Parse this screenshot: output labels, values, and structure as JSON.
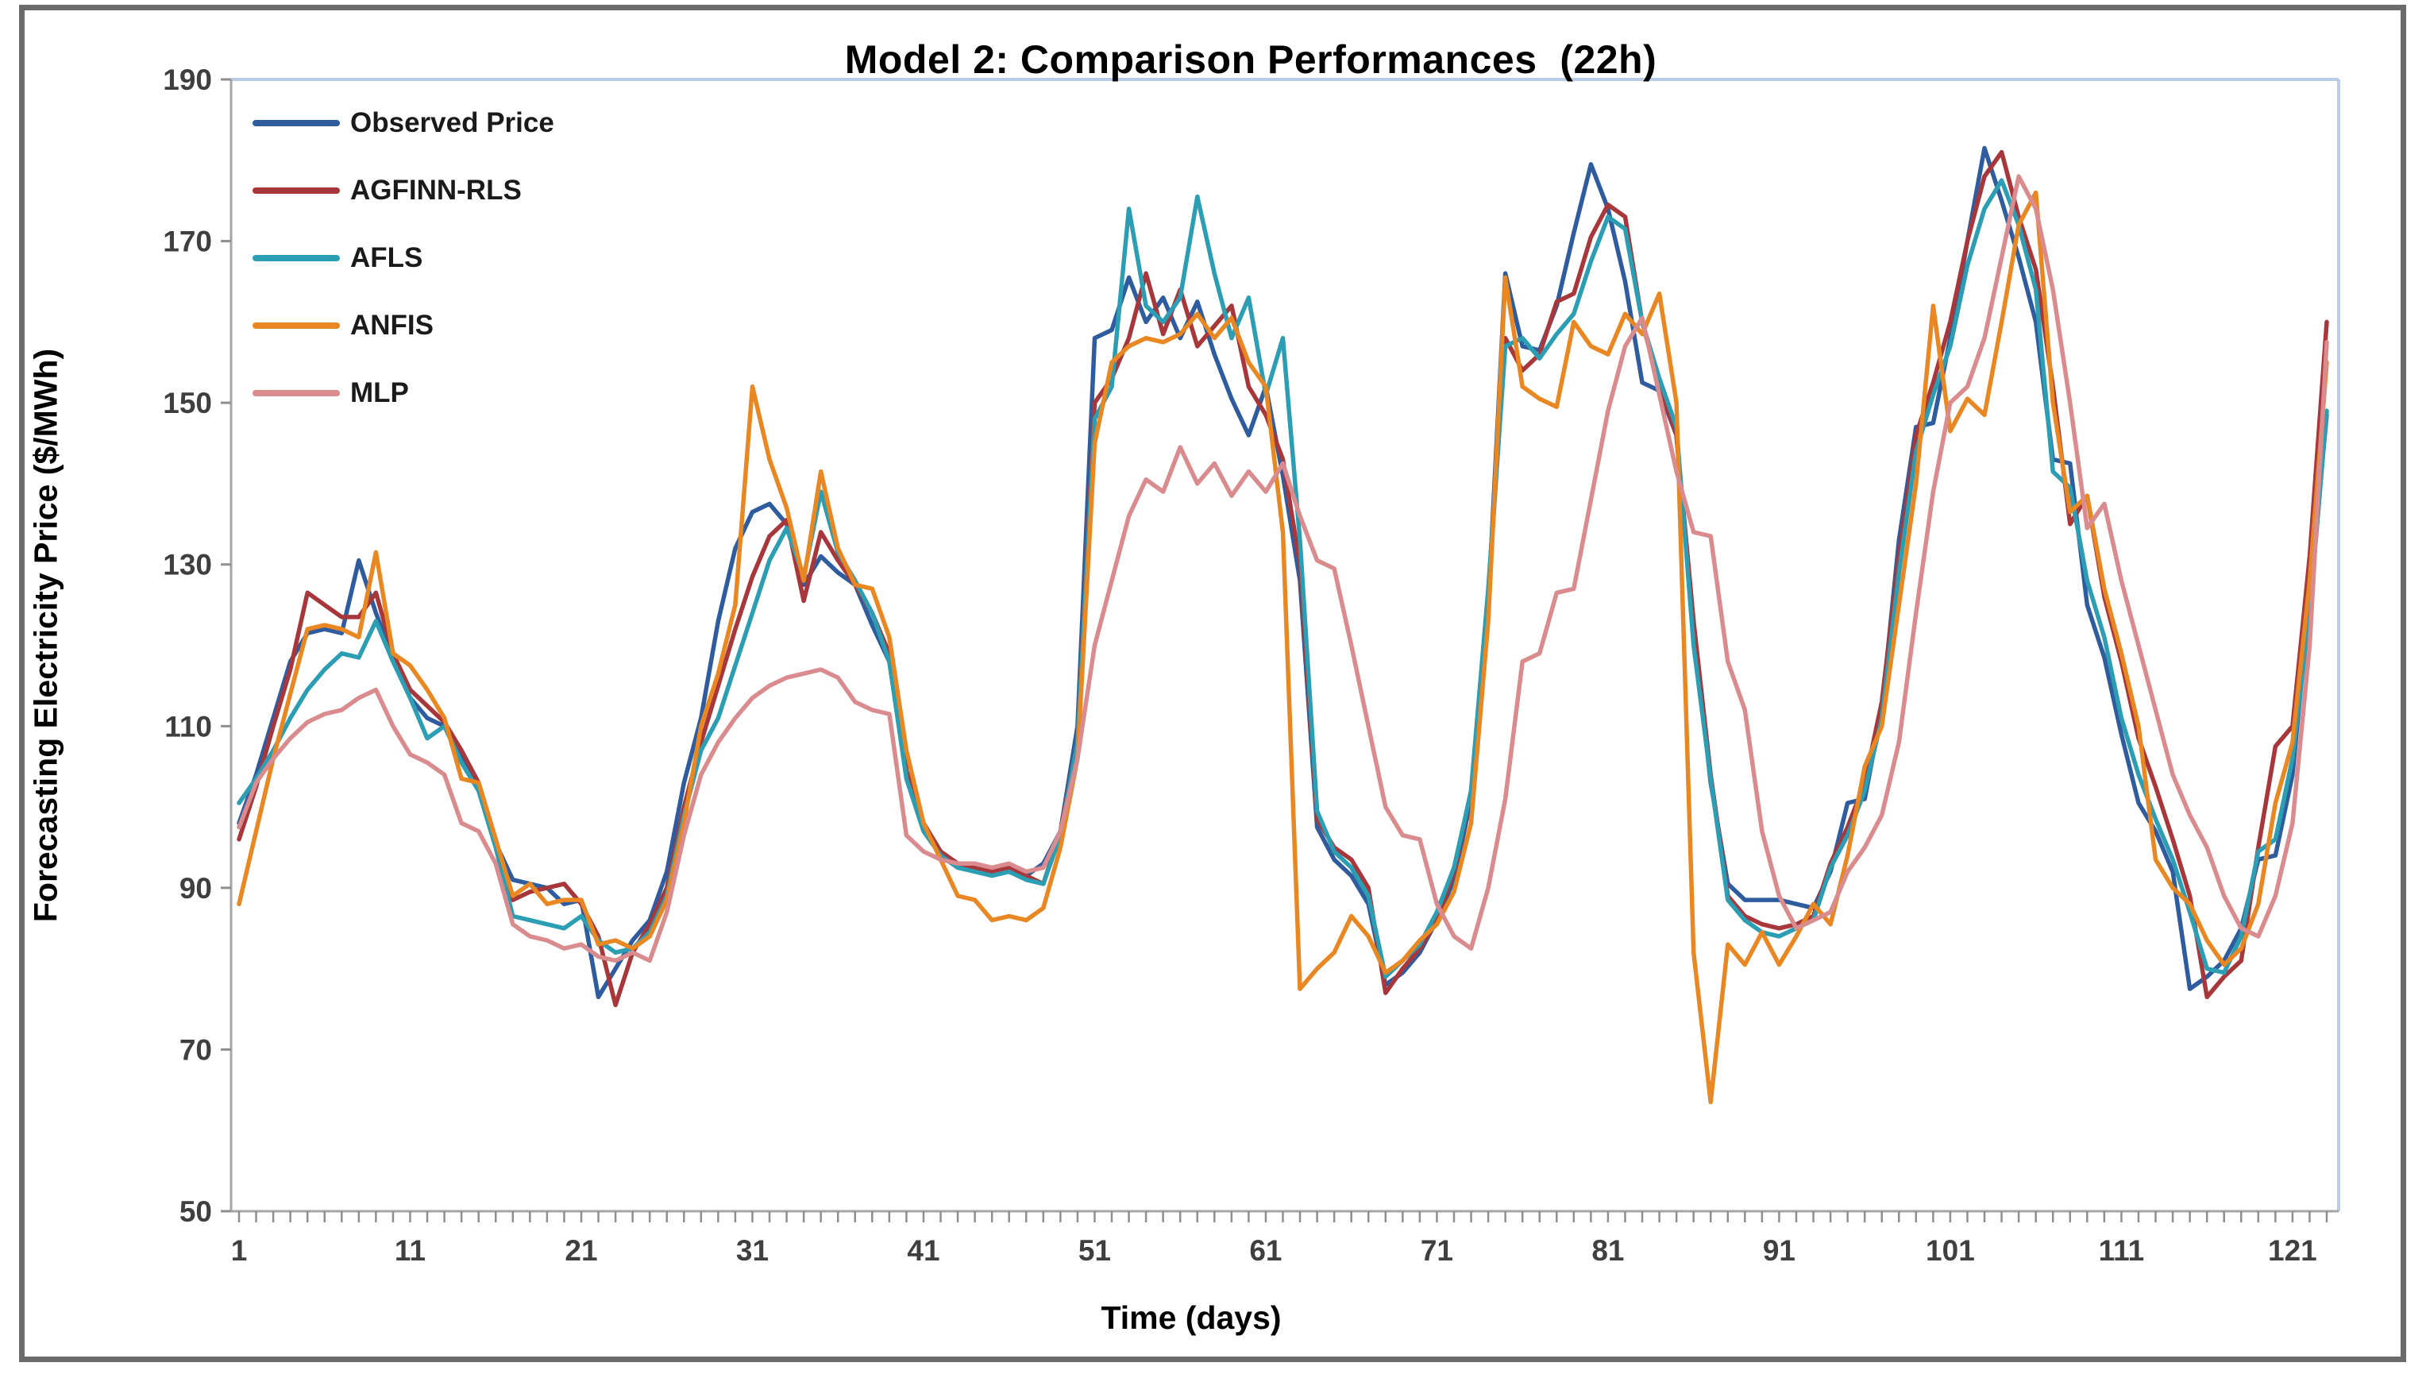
{
  "chart_data": {
    "type": "line",
    "title": "Model 2: Comparison Performances  (22h)",
    "xlabel": "Time (days)",
    "ylabel": "Forecasting Electricity Price ($/MWh)",
    "x_ticks": [
      1,
      11,
      21,
      31,
      41,
      51,
      61,
      71,
      81,
      91,
      101,
      111,
      121
    ],
    "y_ticks": [
      50,
      70,
      90,
      110,
      130,
      150,
      170,
      190
    ],
    "ylim": [
      50,
      190
    ],
    "n_days": 123,
    "grid": "off",
    "legend_position": "top-left-inside",
    "series": [
      {
        "name": "Observed Price",
        "color": "#2E5C9E",
        "values": [
          98,
          104,
          111,
          118,
          121.5,
          122,
          121.5,
          130.5,
          124,
          118.5,
          113.5,
          111,
          110,
          106,
          102.5,
          95.5,
          91,
          90.5,
          90,
          88,
          88.5,
          76.5,
          80,
          83.5,
          86,
          92,
          103,
          111,
          123,
          132,
          136.5,
          137.5,
          135,
          127.5,
          131,
          129,
          127.5,
          122.5,
          118,
          104,
          97.5,
          94,
          92.5,
          92.5,
          92,
          92.5,
          91.5,
          93,
          97,
          110,
          158,
          159,
          165.5,
          160,
          163,
          158,
          162.5,
          156,
          150.5,
          146,
          152,
          141,
          128,
          97.5,
          93.5,
          91.5,
          88,
          78,
          79.5,
          82,
          86,
          91,
          101,
          125,
          166,
          157,
          156.5,
          162,
          171,
          179.5,
          174,
          165,
          152.5,
          151.5,
          146,
          122,
          103,
          90.5,
          88.5,
          88.5,
          88.5,
          88,
          87.5,
          92,
          100.5,
          101,
          112,
          133,
          147,
          147.5,
          158,
          170,
          181.5,
          175,
          168,
          160,
          143,
          142.5,
          125,
          118.5,
          109,
          100.5,
          97,
          92,
          77.5,
          79,
          81,
          85,
          93.5,
          94,
          104,
          126,
          148.5
        ]
      },
      {
        "name": "AGFINN-RLS",
        "color": "#A7373B",
        "values": [
          96,
          102.5,
          110,
          117,
          126.5,
          125,
          123.5,
          123.5,
          126.5,
          119,
          114.5,
          112.5,
          110.5,
          107,
          103,
          96,
          88.5,
          89.5,
          90,
          90.5,
          88,
          84,
          75.5,
          82,
          85.5,
          90,
          100,
          108,
          115,
          122,
          128.5,
          133.5,
          135.5,
          125.5,
          134,
          130.5,
          127.5,
          124,
          119,
          104.5,
          98,
          94.5,
          93,
          92.5,
          92,
          92.5,
          91.5,
          90.5,
          97,
          108,
          150,
          153,
          158,
          166,
          158.5,
          164,
          157,
          159.5,
          162,
          152,
          148.5,
          143,
          130,
          98.5,
          95,
          93.5,
          90,
          77,
          80,
          82.5,
          86,
          92,
          102,
          126,
          158,
          154,
          156,
          162.5,
          163.5,
          170.5,
          174.5,
          173,
          160,
          152,
          146,
          123,
          104,
          89,
          86.5,
          85.5,
          85,
          85.5,
          86.5,
          93,
          97.5,
          103,
          113,
          131,
          146,
          152.5,
          160,
          170,
          178,
          181,
          173,
          166.5,
          152,
          135,
          138.5,
          126,
          118,
          108.5,
          102.5,
          96,
          89,
          76.5,
          79,
          81,
          95,
          107.5,
          110,
          131,
          160
        ]
      },
      {
        "name": "AFLS",
        "color": "#2B9EB3",
        "values": [
          100.5,
          103.5,
          107,
          111,
          114.5,
          117,
          119,
          118.5,
          123,
          118,
          113.5,
          108.5,
          110,
          105.5,
          102,
          95,
          86.5,
          86,
          85.5,
          85,
          86.5,
          83.5,
          82,
          82.5,
          84.5,
          89,
          99,
          107,
          111,
          117.5,
          124,
          130.5,
          134.5,
          128.5,
          139,
          131.5,
          128,
          124,
          118,
          103.5,
          97,
          94,
          92.5,
          92,
          91.5,
          92,
          91,
          90.5,
          96.5,
          108,
          148,
          152,
          174,
          162,
          160,
          163,
          175.5,
          166,
          158,
          163,
          151,
          158,
          133,
          99.5,
          94.5,
          92.5,
          89,
          79,
          81,
          83,
          87,
          92.5,
          102,
          127,
          157,
          158,
          155.5,
          158.5,
          161,
          167.5,
          173,
          171.5,
          160,
          153,
          147,
          120,
          103.5,
          88.5,
          86,
          84.5,
          84,
          85,
          86,
          92.5,
          96.5,
          102,
          111,
          129,
          144,
          151,
          157,
          167,
          174,
          177.5,
          172,
          164,
          141.5,
          139.5,
          128,
          121,
          111,
          104,
          98.5,
          93.5,
          87,
          80,
          79.5,
          84,
          94.5,
          96,
          106,
          124,
          149
        ]
      },
      {
        "name": "ANFIS",
        "color": "#E98722",
        "values": [
          88,
          97,
          106,
          114,
          122,
          122.5,
          122,
          121,
          131.5,
          119,
          117.5,
          114.5,
          111,
          103.5,
          103,
          96,
          89,
          90.5,
          88,
          88.5,
          88.5,
          83,
          83.5,
          82.5,
          84,
          88.5,
          98,
          110,
          116.5,
          125,
          152,
          143,
          137,
          128,
          141.5,
          132,
          127.5,
          127,
          121,
          107,
          98,
          93.5,
          89,
          88.5,
          86,
          86.5,
          86,
          87.5,
          95,
          106,
          145,
          155,
          157,
          158,
          157.5,
          158.5,
          161,
          158,
          160.5,
          155,
          152,
          134,
          77.5,
          80,
          82,
          86.5,
          84,
          79.5,
          81,
          83.5,
          85.5,
          89.5,
          98,
          123,
          165.5,
          152,
          150.5,
          149.5,
          160,
          157,
          156,
          161,
          158.5,
          163.5,
          150,
          82,
          63.5,
          83,
          80.5,
          84.5,
          80.5,
          84,
          88,
          85.5,
          94,
          105,
          110,
          125,
          140,
          162,
          146.5,
          150.5,
          148.5,
          160,
          172,
          176,
          150,
          136.5,
          138.5,
          127,
          119,
          110,
          93.5,
          90,
          88,
          83.5,
          80.5,
          82.5,
          88,
          100.5,
          108,
          128,
          155
        ]
      },
      {
        "name": "MLP",
        "color": "#D98B8E",
        "values": [
          97.5,
          103,
          106,
          108.5,
          110.5,
          111.5,
          112,
          113.5,
          114.5,
          110,
          106.5,
          105.5,
          104,
          98,
          97,
          93,
          85.5,
          84,
          83.5,
          82.5,
          83,
          81.5,
          81,
          82,
          81,
          87,
          96.5,
          104,
          108,
          111,
          113.5,
          115,
          116,
          116.5,
          117,
          116,
          113,
          112,
          111.5,
          96.5,
          94.5,
          93.5,
          93,
          93,
          92.5,
          93,
          92,
          92.5,
          97,
          106,
          120,
          128,
          136,
          140.5,
          139,
          144.5,
          140,
          142.5,
          138.5,
          141.5,
          139,
          142.5,
          136,
          130.5,
          129.5,
          120,
          110,
          100,
          96.5,
          96,
          88,
          84,
          82.5,
          90,
          101,
          118,
          119,
          126.5,
          127,
          138,
          149,
          157,
          160.5,
          151,
          141.5,
          134,
          133.5,
          118,
          112,
          97,
          89,
          85,
          86,
          87,
          92,
          95,
          99,
          108,
          124,
          139,
          150,
          152,
          158,
          168,
          178,
          174,
          164,
          150,
          134.5,
          137.5,
          128,
          120,
          112,
          104,
          99,
          95,
          89,
          85,
          84,
          89,
          98,
          120,
          157.5
        ]
      }
    ]
  },
  "colors": {
    "background": "#FFFFFF",
    "outer_frame": "#6B6B6B",
    "plot_border_top_right": "#B9CBE5",
    "axis_line": "#A6A6A6",
    "tick": "#8F8F8F",
    "tick_label": "#3F3F3F",
    "title_text": "#000000"
  }
}
